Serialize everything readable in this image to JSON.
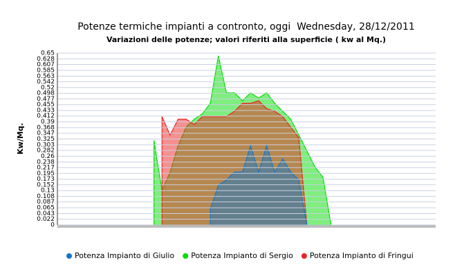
{
  "chart_data": {
    "type": "area",
    "title": "Potenze termiche impianti a contronto, oggi  Wednesday, 28/12/2011",
    "subtitle": "Variazioni delle potenze; valori riferiti alla superficie ( kw al Mq.)",
    "y_label": "Kw/Mq.",
    "categories": [
      null,
      null,
      null,
      null,
      null,
      null,
      null,
      null,
      null,
      null,
      null,
      null,
      null,
      null,
      null,
      null,
      null,
      null,
      null,
      null,
      null,
      null,
      null,
      null,
      null,
      null,
      null,
      null,
      null,
      null,
      null,
      null,
      null,
      null,
      null,
      null,
      null,
      null,
      null,
      null,
      null,
      null,
      null,
      null,
      null,
      null,
      null,
      null
    ],
    "series": [
      {
        "name": "Potenza Impianto di Sergio",
        "color": "#00dd00",
        "values": [
          null,
          null,
          null,
          null,
          null,
          null,
          null,
          null,
          null,
          null,
          null,
          null,
          0.32,
          0.13,
          0.2,
          0.3,
          0.37,
          0.4,
          0.42,
          0.46,
          0.64,
          0.5,
          0.5,
          0.47,
          0.5,
          0.48,
          0.5,
          0.46,
          0.43,
          0.4,
          0.34,
          0.28,
          0.22,
          0.18,
          0,
          null,
          null,
          null,
          null,
          null,
          null,
          null,
          null,
          null,
          null,
          null,
          null,
          null
        ]
      },
      {
        "name": "Potenza Impianto di Fringui",
        "color": "#ee2222",
        "values": [
          null,
          null,
          null,
          null,
          null,
          null,
          null,
          null,
          null,
          null,
          null,
          null,
          null,
          0.41,
          0.34,
          0.4,
          0.4,
          0.38,
          0.41,
          0.41,
          0.41,
          0.41,
          0.43,
          0.46,
          0.46,
          0.47,
          0.44,
          0.43,
          0.41,
          0.37,
          0.33,
          0,
          null,
          null,
          null,
          null,
          null,
          null,
          null,
          null,
          null,
          null,
          null,
          null,
          null,
          null,
          null,
          null
        ]
      },
      {
        "name": "Potenza Impianto di Giulio",
        "color": "#1177cc",
        "values": [
          null,
          null,
          null,
          null,
          null,
          null,
          null,
          null,
          null,
          null,
          null,
          null,
          null,
          null,
          null,
          null,
          null,
          null,
          null,
          0.06,
          0.15,
          0.17,
          0.2,
          0.2,
          0.3,
          0.2,
          0.3,
          0.2,
          0.25,
          0.2,
          0.17,
          0,
          null,
          null,
          null,
          null,
          null,
          null,
          null,
          null,
          null,
          null,
          null,
          null,
          null,
          null,
          null,
          null
        ]
      }
    ],
    "legend_order": [
      2,
      0,
      1
    ],
    "ylim": [
      0,
      0.65
    ],
    "yticks": [
      0,
      0.022,
      0.043,
      0.065,
      0.087,
      0.108,
      0.13,
      0.152,
      0.173,
      0.195,
      0.217,
      0.238,
      0.26,
      0.282,
      0.303,
      0.325,
      0.347,
      0.368,
      0.39,
      0.412,
      0.433,
      0.455,
      0.477,
      0.498,
      0.52,
      0.542,
      0.563,
      0.585,
      0.607,
      0.628,
      0.65
    ],
    "grid": true
  }
}
